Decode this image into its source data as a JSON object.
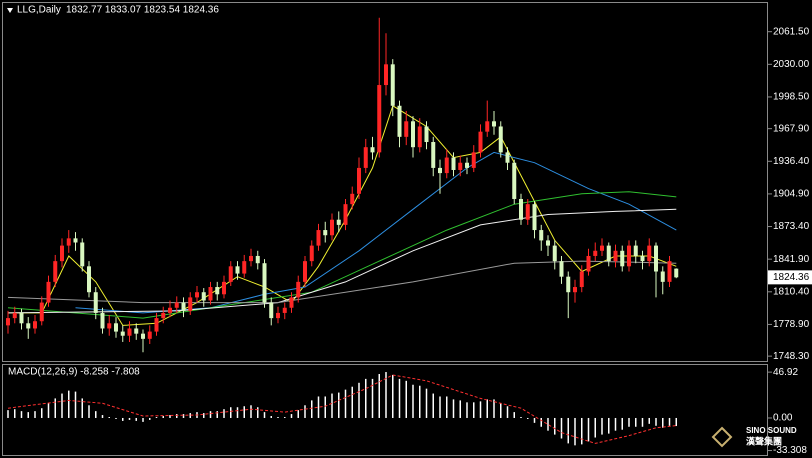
{
  "chart_data": [
    {
      "type": "candlestick",
      "title": "LLG,Daily",
      "subtitle": "1832.77 1833.07 1823.54 1824.36",
      "ylim": [
        1743.6,
        2089.2
      ],
      "yticks": [
        {
          "value": 2061.5,
          "label": "2061.50"
        },
        {
          "value": 2030,
          "label": "2030.00"
        },
        {
          "value": 1998.5,
          "label": "1998.50"
        },
        {
          "value": 1967.9,
          "label": "1967.90"
        },
        {
          "value": 1936.4,
          "label": "1936.40"
        },
        {
          "value": 1904.9,
          "label": "1904.90"
        },
        {
          "value": 1873.4,
          "label": "1873.40"
        },
        {
          "value": 1841.9,
          "label": "1841.90"
        },
        {
          "value": 1810.4,
          "label": "1810.40"
        },
        {
          "value": 1778.9,
          "label": "1778.90"
        },
        {
          "value": 1748.3,
          "label": "1748.30"
        }
      ],
      "last_price": 1824.36,
      "grid": false,
      "up_color": "#ff2626",
      "down_color": "#d9f7c0",
      "open": [
        1778,
        1785,
        1790,
        1780,
        1775,
        1782,
        1800,
        1820,
        1840,
        1855,
        1862,
        1858,
        1835,
        1810,
        1790,
        1775,
        1780,
        1772,
        1768,
        1775,
        1770,
        1765,
        1772,
        1785,
        1790,
        1795,
        1800,
        1792,
        1805,
        1810,
        1802,
        1815,
        1808,
        1820,
        1835,
        1828,
        1840,
        1845,
        1838,
        1800,
        1785,
        1790,
        1795,
        1805,
        1820,
        1840,
        1855,
        1870,
        1865,
        1880,
        1875,
        1895,
        1905,
        1930,
        1950,
        1945,
        2010,
        2030,
        1990,
        1960,
        1975,
        1950,
        1970,
        1955,
        1930,
        1925,
        1940,
        1928,
        1935,
        1930,
        1945,
        1965,
        1975,
        1970,
        1945,
        1935,
        1900,
        1880,
        1895,
        1870,
        1860,
        1855,
        1840,
        1825,
        1810,
        1815,
        1830,
        1845,
        1850,
        1855,
        1840,
        1850,
        1835,
        1855,
        1845,
        1840,
        1855,
        1830,
        1820,
        1832.77
      ],
      "high": [
        1792,
        1796,
        1794,
        1786,
        1788,
        1806,
        1826,
        1846,
        1862,
        1870,
        1868,
        1862,
        1840,
        1815,
        1795,
        1788,
        1786,
        1778,
        1782,
        1780,
        1774,
        1778,
        1790,
        1796,
        1802,
        1806,
        1805,
        1810,
        1816,
        1814,
        1820,
        1820,
        1826,
        1840,
        1840,
        1846,
        1852,
        1850,
        1842,
        1805,
        1796,
        1800,
        1810,
        1826,
        1845,
        1860,
        1876,
        1878,
        1886,
        1888,
        1900,
        1912,
        1940,
        1958,
        1960,
        2075,
        2060,
        2035,
        1995,
        1985,
        1980,
        1978,
        1975,
        1960,
        1938,
        1948,
        1945,
        1942,
        1940,
        1952,
        1972,
        1995,
        1985,
        1975,
        1950,
        1938,
        1905,
        1900,
        1898,
        1875,
        1865,
        1860,
        1845,
        1830,
        1822,
        1836,
        1852,
        1858,
        1862,
        1858,
        1856,
        1855,
        1860,
        1860,
        1850,
        1862,
        1858,
        1835,
        1845,
        1833.07
      ],
      "low": [
        1770,
        1780,
        1774,
        1765,
        1770,
        1778,
        1796,
        1815,
        1834,
        1848,
        1850,
        1830,
        1805,
        1784,
        1770,
        1768,
        1766,
        1762,
        1762,
        1764,
        1752,
        1760,
        1768,
        1780,
        1786,
        1790,
        1786,
        1788,
        1800,
        1796,
        1798,
        1802,
        1804,
        1816,
        1822,
        1824,
        1835,
        1832,
        1795,
        1778,
        1780,
        1784,
        1790,
        1800,
        1815,
        1835,
        1850,
        1858,
        1860,
        1868,
        1870,
        1890,
        1900,
        1925,
        1938,
        1940,
        2000,
        1980,
        1950,
        1952,
        1940,
        1945,
        1948,
        1922,
        1905,
        1920,
        1922,
        1922,
        1924,
        1926,
        1940,
        1960,
        1962,
        1940,
        1928,
        1895,
        1875,
        1875,
        1862,
        1850,
        1845,
        1832,
        1818,
        1785,
        1800,
        1810,
        1826,
        1840,
        1845,
        1835,
        1834,
        1830,
        1830,
        1838,
        1832,
        1835,
        1805,
        1808,
        1815,
        1823.54
      ],
      "close": [
        1785,
        1790,
        1780,
        1775,
        1782,
        1800,
        1820,
        1840,
        1855,
        1862,
        1858,
        1835,
        1810,
        1790,
        1775,
        1780,
        1772,
        1768,
        1775,
        1770,
        1765,
        1772,
        1785,
        1790,
        1795,
        1800,
        1792,
        1805,
        1810,
        1802,
        1815,
        1808,
        1820,
        1835,
        1828,
        1840,
        1845,
        1838,
        1800,
        1785,
        1790,
        1795,
        1805,
        1820,
        1840,
        1855,
        1870,
        1865,
        1880,
        1875,
        1895,
        1905,
        1930,
        1950,
        1945,
        2010,
        2030,
        1990,
        1960,
        1975,
        1950,
        1970,
        1955,
        1930,
        1925,
        1940,
        1928,
        1935,
        1930,
        1945,
        1965,
        1975,
        1970,
        1945,
        1935,
        1900,
        1880,
        1895,
        1870,
        1860,
        1855,
        1840,
        1825,
        1810,
        1815,
        1830,
        1845,
        1850,
        1855,
        1840,
        1850,
        1835,
        1855,
        1845,
        1840,
        1855,
        1830,
        1820,
        1840,
        1824.36
      ],
      "lines": [
        {
          "color": "#f0f030",
          "x": [
            0,
            5,
            9,
            13,
            17,
            22,
            28,
            34,
            38,
            42,
            46,
            50,
            54,
            57,
            62,
            66,
            70,
            73,
            77,
            81,
            85,
            90,
            95,
            99
          ],
          "values": [
            1790,
            1790,
            1845,
            1820,
            1778,
            1780,
            1800,
            1825,
            1815,
            1800,
            1835,
            1880,
            1930,
            1990,
            1970,
            1940,
            1945,
            1960,
            1910,
            1860,
            1830,
            1845,
            1845,
            1835
          ]
        },
        {
          "color": "#2d8ee0",
          "x": [
            10,
            20,
            30,
            38,
            44,
            52,
            60,
            68,
            72,
            78,
            86,
            92,
            99
          ],
          "values": [
            1795,
            1790,
            1795,
            1808,
            1815,
            1850,
            1890,
            1930,
            1945,
            1935,
            1910,
            1895,
            1870
          ]
        },
        {
          "color": "#30c030",
          "x": [
            0,
            20,
            35,
            45,
            55,
            65,
            75,
            85,
            92,
            99
          ],
          "values": [
            1795,
            1785,
            1800,
            1810,
            1840,
            1870,
            1895,
            1905,
            1907,
            1902
          ]
        },
        {
          "color": "#f0f0f0",
          "x": [
            0,
            25,
            40,
            50,
            60,
            70,
            80,
            90,
            99
          ],
          "values": [
            1790,
            1792,
            1800,
            1820,
            1850,
            1875,
            1885,
            1888,
            1890
          ]
        },
        {
          "color": "#9a9a9a",
          "x": [
            0,
            20,
            40,
            60,
            75,
            85,
            99
          ],
          "values": [
            1805,
            1800,
            1800,
            1820,
            1838,
            1840,
            1838
          ]
        }
      ],
      "watermark": {
        "line1": "SINO SOUND",
        "line2": "漢聲集團"
      }
    },
    {
      "type": "macd",
      "title": "MACD(12,26,9) -8.258 -7.808",
      "ylim": [
        -38.9,
        54.2
      ],
      "yticks": [
        46.92,
        {
          "value": 0,
          "label": "0.00"
        },
        -33.308
      ],
      "color": "#ffffff",
      "values": [
        8,
        9,
        7,
        6,
        7,
        10,
        15,
        20,
        25,
        28,
        27,
        20,
        13,
        7,
        3,
        1,
        -1,
        -3,
        -2,
        -3,
        -4,
        -2,
        1,
        2,
        3,
        4,
        4,
        5,
        6,
        5,
        7,
        7,
        9,
        11,
        11,
        12,
        13,
        11,
        6,
        2,
        1,
        1,
        4,
        8,
        13,
        18,
        22,
        22,
        25,
        26,
        29,
        32,
        36,
        40,
        40,
        45,
        47,
        44,
        40,
        38,
        34,
        33,
        30,
        25,
        22,
        22,
        19,
        18,
        16,
        16,
        17,
        19,
        19,
        15,
        12,
        6,
        1,
        -1,
        -5,
        -9,
        -13,
        -17,
        -21,
        -26,
        -28,
        -27,
        -24,
        -20,
        -17,
        -16,
        -13,
        -12,
        -9,
        -9,
        -9,
        -6,
        -8,
        -10,
        -8,
        -8.258
      ],
      "signal": {
        "color": "#ff3030",
        "x": [
          0,
          9,
          14,
          20,
          28,
          36,
          41,
          47,
          53,
          57,
          62,
          70,
          76,
          82,
          87,
          92,
          96,
          99
        ],
        "values": [
          10,
          18,
          15,
          2,
          3,
          9,
          6,
          12,
          30,
          44,
          38,
          20,
          10,
          -15,
          -26,
          -18,
          -10,
          -7.808
        ]
      }
    }
  ]
}
